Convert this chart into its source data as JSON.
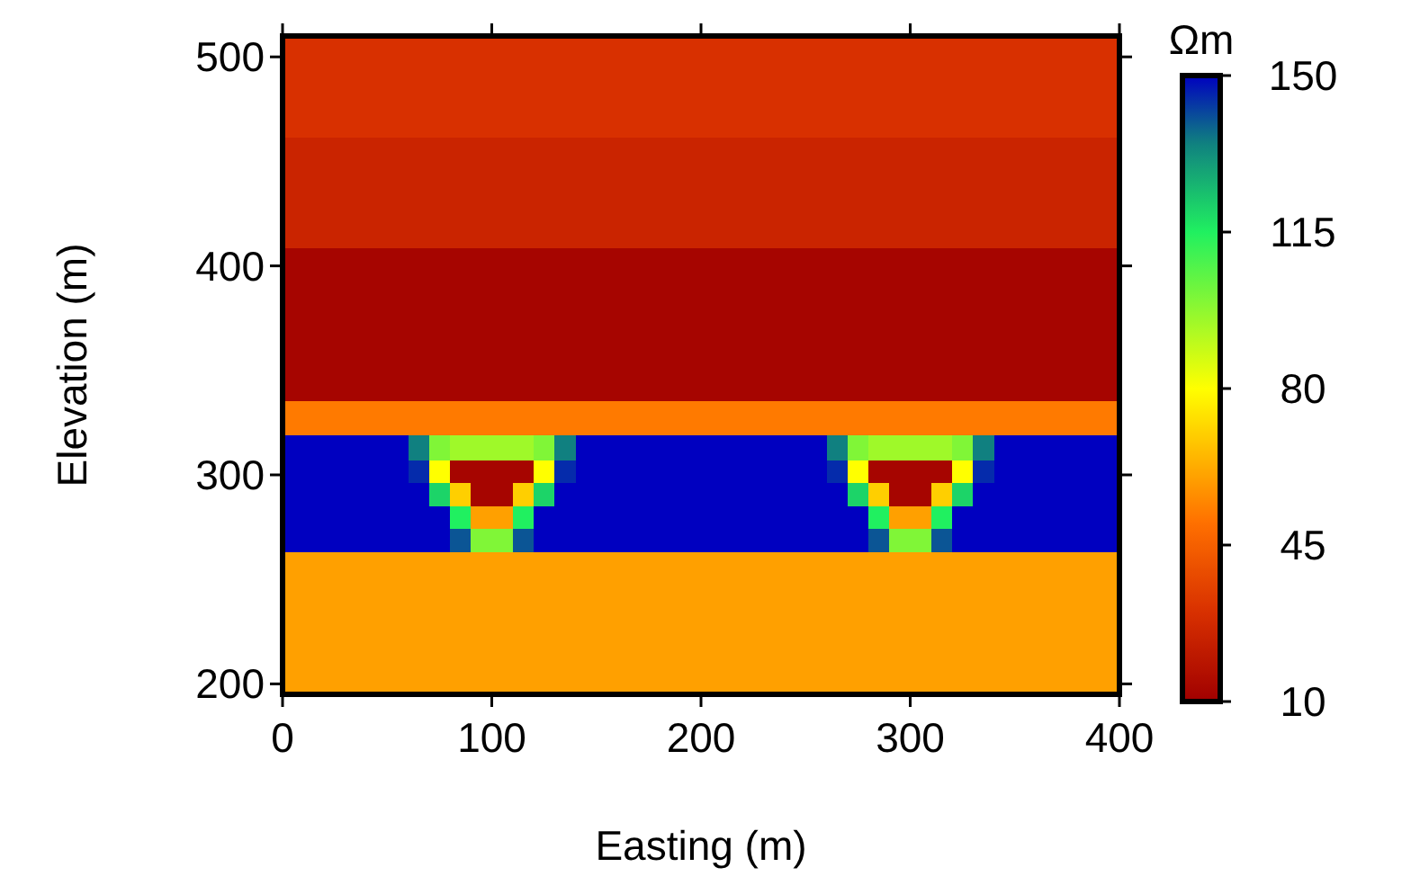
{
  "chart_data": {
    "type": "heatmap",
    "xlabel": "Easting (m)",
    "ylabel": "Elevation (m)",
    "clabel": "Ωm",
    "x": [
      5,
      15,
      25,
      35,
      45,
      55,
      65,
      75,
      85,
      95,
      105,
      115,
      125,
      135,
      145,
      155,
      165,
      175,
      185,
      195,
      205,
      215,
      225,
      235,
      245,
      255,
      265,
      275,
      285,
      295,
      305,
      315,
      325,
      335,
      345,
      355,
      365,
      375,
      385,
      395
    ],
    "y": [
      498,
      474,
      448.5,
      421.5,
      395.5,
      370.5,
      345.5,
      325.5,
      312.5,
      301.5,
      290.5,
      279.5,
      268.5,
      257.5,
      246.5,
      235.5,
      224.5,
      213.5,
      202.5
    ],
    "xlim": [
      0,
      400
    ],
    "ylim": [
      195,
      510
    ],
    "xticks": [
      0,
      100,
      200,
      300,
      400
    ],
    "yticks": [
      200,
      300,
      400,
      500
    ],
    "clim": [
      10,
      150
    ],
    "cticks": [
      10,
      45,
      80,
      115,
      150
    ],
    "cells": [
      [
        30,
        30,
        30,
        30,
        30,
        30,
        30,
        30,
        30,
        30,
        30,
        30,
        30,
        30,
        30,
        30,
        30,
        30,
        30,
        30,
        30,
        30,
        30,
        30,
        30,
        30,
        30,
        30,
        30,
        30,
        30,
        30,
        30,
        30,
        30,
        30,
        30,
        30,
        30,
        30
      ],
      [
        30,
        30,
        30,
        30,
        30,
        30,
        30,
        30,
        30,
        30,
        30,
        30,
        30,
        30,
        30,
        30,
        30,
        30,
        30,
        30,
        30,
        30,
        30,
        30,
        30,
        30,
        30,
        30,
        30,
        30,
        30,
        30,
        30,
        30,
        30,
        30,
        30,
        30,
        30,
        30
      ],
      [
        25,
        25,
        25,
        25,
        25,
        25,
        25,
        25,
        25,
        25,
        25,
        25,
        25,
        25,
        25,
        25,
        25,
        25,
        25,
        25,
        25,
        25,
        25,
        25,
        25,
        25,
        25,
        25,
        25,
        25,
        25,
        25,
        25,
        25,
        25,
        25,
        25,
        25,
        25,
        25
      ],
      [
        25,
        25,
        25,
        25,
        25,
        25,
        25,
        25,
        25,
        25,
        25,
        25,
        25,
        25,
        25,
        25,
        25,
        25,
        25,
        25,
        25,
        25,
        25,
        25,
        25,
        25,
        25,
        25,
        25,
        25,
        25,
        25,
        25,
        25,
        25,
        25,
        25,
        25,
        25,
        25
      ],
      [
        12,
        12,
        12,
        12,
        12,
        12,
        12,
        12,
        12,
        12,
        12,
        12,
        12,
        12,
        12,
        12,
        12,
        12,
        12,
        12,
        12,
        12,
        12,
        12,
        12,
        12,
        12,
        12,
        12,
        12,
        12,
        12,
        12,
        12,
        12,
        12,
        12,
        12,
        12,
        12
      ],
      [
        12,
        12,
        12,
        12,
        12,
        12,
        12,
        12,
        12,
        12,
        12,
        12,
        12,
        12,
        12,
        12,
        12,
        12,
        12,
        12,
        12,
        12,
        12,
        12,
        12,
        12,
        12,
        12,
        12,
        12,
        12,
        12,
        12,
        12,
        12,
        12,
        12,
        12,
        12,
        12
      ],
      [
        12,
        12,
        12,
        12,
        12,
        12,
        12,
        12,
        12,
        12,
        12,
        12,
        12,
        12,
        12,
        12,
        12,
        12,
        12,
        12,
        12,
        12,
        12,
        12,
        12,
        12,
        12,
        12,
        12,
        12,
        12,
        12,
        12,
        12,
        12,
        12,
        12,
        12,
        12,
        12
      ],
      [
        52,
        52,
        52,
        52,
        52,
        52,
        52,
        52,
        52,
        52,
        52,
        52,
        52,
        52,
        52,
        52,
        52,
        52,
        52,
        52,
        52,
        52,
        52,
        52,
        52,
        52,
        52,
        52,
        52,
        52,
        52,
        52,
        52,
        52,
        52,
        52,
        52,
        52,
        52,
        52
      ],
      [
        150,
        150,
        150,
        150,
        150,
        150,
        135,
        100,
        95,
        95,
        95,
        95,
        100,
        135,
        150,
        150,
        150,
        150,
        150,
        150,
        150,
        150,
        150,
        150,
        150,
        150,
        135,
        100,
        95,
        95,
        95,
        95,
        100,
        135,
        150,
        150,
        150,
        150,
        150,
        150
      ],
      [
        150,
        150,
        150,
        150,
        150,
        150,
        145,
        80,
        12,
        12,
        12,
        12,
        80,
        145,
        150,
        150,
        150,
        150,
        150,
        150,
        150,
        150,
        150,
        150,
        150,
        150,
        145,
        80,
        12,
        12,
        12,
        12,
        80,
        145,
        150,
        150,
        150,
        150,
        150,
        150
      ],
      [
        150,
        150,
        150,
        150,
        150,
        150,
        150,
        120,
        70,
        12,
        12,
        70,
        120,
        150,
        150,
        150,
        150,
        150,
        150,
        150,
        150,
        150,
        150,
        150,
        150,
        150,
        150,
        120,
        70,
        12,
        12,
        70,
        120,
        150,
        150,
        150,
        150,
        150,
        150,
        150
      ],
      [
        150,
        150,
        150,
        150,
        150,
        150,
        150,
        150,
        115,
        60,
        60,
        115,
        150,
        150,
        150,
        150,
        150,
        150,
        150,
        150,
        150,
        150,
        150,
        150,
        150,
        150,
        150,
        150,
        115,
        60,
        60,
        115,
        150,
        150,
        150,
        150,
        150,
        150,
        150,
        150
      ],
      [
        150,
        150,
        150,
        150,
        150,
        150,
        150,
        150,
        140,
        100,
        100,
        140,
        150,
        150,
        150,
        150,
        150,
        150,
        150,
        150,
        150,
        150,
        150,
        150,
        150,
        150,
        150,
        150,
        140,
        100,
        100,
        140,
        150,
        150,
        150,
        150,
        150,
        150,
        150,
        150
      ],
      [
        60,
        60,
        60,
        60,
        60,
        60,
        60,
        60,
        60,
        60,
        60,
        60,
        60,
        60,
        60,
        60,
        60,
        60,
        60,
        60,
        60,
        60,
        60,
        60,
        60,
        60,
        60,
        60,
        60,
        60,
        60,
        60,
        60,
        60,
        60,
        60,
        60,
        60,
        60,
        60
      ],
      [
        60,
        60,
        60,
        60,
        60,
        60,
        60,
        60,
        60,
        60,
        60,
        60,
        60,
        60,
        60,
        60,
        60,
        60,
        60,
        60,
        60,
        60,
        60,
        60,
        60,
        60,
        60,
        60,
        60,
        60,
        60,
        60,
        60,
        60,
        60,
        60,
        60,
        60,
        60,
        60
      ],
      [
        60,
        60,
        60,
        60,
        60,
        60,
        60,
        60,
        60,
        60,
        60,
        60,
        60,
        60,
        60,
        60,
        60,
        60,
        60,
        60,
        60,
        60,
        60,
        60,
        60,
        60,
        60,
        60,
        60,
        60,
        60,
        60,
        60,
        60,
        60,
        60,
        60,
        60,
        60,
        60
      ],
      [
        60,
        60,
        60,
        60,
        60,
        60,
        60,
        60,
        60,
        60,
        60,
        60,
        60,
        60,
        60,
        60,
        60,
        60,
        60,
        60,
        60,
        60,
        60,
        60,
        60,
        60,
        60,
        60,
        60,
        60,
        60,
        60,
        60,
        60,
        60,
        60,
        60,
        60,
        60,
        60
      ],
      [
        60,
        60,
        60,
        60,
        60,
        60,
        60,
        60,
        60,
        60,
        60,
        60,
        60,
        60,
        60,
        60,
        60,
        60,
        60,
        60,
        60,
        60,
        60,
        60,
        60,
        60,
        60,
        60,
        60,
        60,
        60,
        60,
        60,
        60,
        60,
        60,
        60,
        60,
        60,
        60
      ],
      [
        60,
        60,
        60,
        60,
        60,
        60,
        60,
        60,
        60,
        60,
        60,
        60,
        60,
        60,
        60,
        60,
        60,
        60,
        60,
        60,
        60,
        60,
        60,
        60,
        60,
        60,
        60,
        60,
        60,
        60,
        60,
        60,
        60,
        60,
        60,
        60,
        60,
        60,
        60,
        60
      ]
    ]
  }
}
